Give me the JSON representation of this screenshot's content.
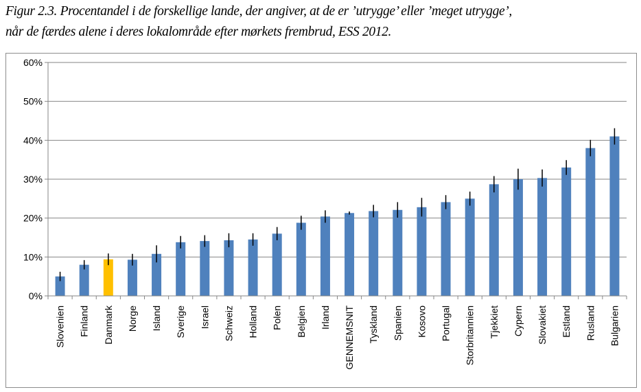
{
  "title": {
    "line1": "Figur 2.3. Procentandel i de forskellige lande, der angiver, at de er ’utrygge’ eller ’meget utrygge’,",
    "line2": "når de færdes alene i deres lokalområde efter mørkets frembrud, ESS 2012."
  },
  "chart_data": {
    "type": "bar",
    "title": "Figur 2.3. Procentandel i de forskellige lande, der angiver, at de er ’utrygge’ eller ’meget utrygge’, når de færdes alene i deres lokalområde efter mørkets frembrud, ESS 2012.",
    "xlabel": "",
    "ylabel": "",
    "ylim": [
      0,
      60
    ],
    "yticks": [
      "0%",
      "10%",
      "20%",
      "30%",
      "40%",
      "50%",
      "60%"
    ],
    "grid": true,
    "legend": "none",
    "colors": {
      "default": "#4f81bd",
      "highlight": "#ffc000",
      "error": "#000000"
    },
    "highlight": "Danmark",
    "categories": [
      "Slovenien",
      "Finland",
      "Danmark",
      "Norge",
      "Island",
      "Sverige",
      "Israel",
      "Schweiz",
      "Holland",
      "Polen",
      "Belgien",
      "Irland",
      "GENNEMSNIT",
      "Tyskland",
      "Spanien",
      "Kosovo",
      "Portugal",
      "Storbritannien",
      "Tjekkiet",
      "Cypern",
      "Slovakiet",
      "Estland",
      "Rusland",
      "Bulgarien"
    ],
    "values": [
      5.0,
      8.0,
      9.4,
      9.3,
      10.8,
      13.8,
      14.1,
      14.3,
      14.5,
      16.0,
      18.8,
      20.4,
      21.3,
      21.8,
      22.1,
      22.8,
      24.1,
      25.0,
      28.7,
      30.0,
      30.3,
      33.0,
      38.0,
      41.0
    ],
    "error": [
      1.2,
      1.2,
      1.5,
      1.5,
      2.2,
      1.6,
      1.5,
      1.8,
      1.6,
      1.7,
      1.8,
      1.6,
      0.4,
      1.6,
      2.0,
      2.4,
      1.8,
      1.8,
      2.1,
      2.7,
      2.2,
      1.9,
      2.1,
      2.1
    ]
  }
}
